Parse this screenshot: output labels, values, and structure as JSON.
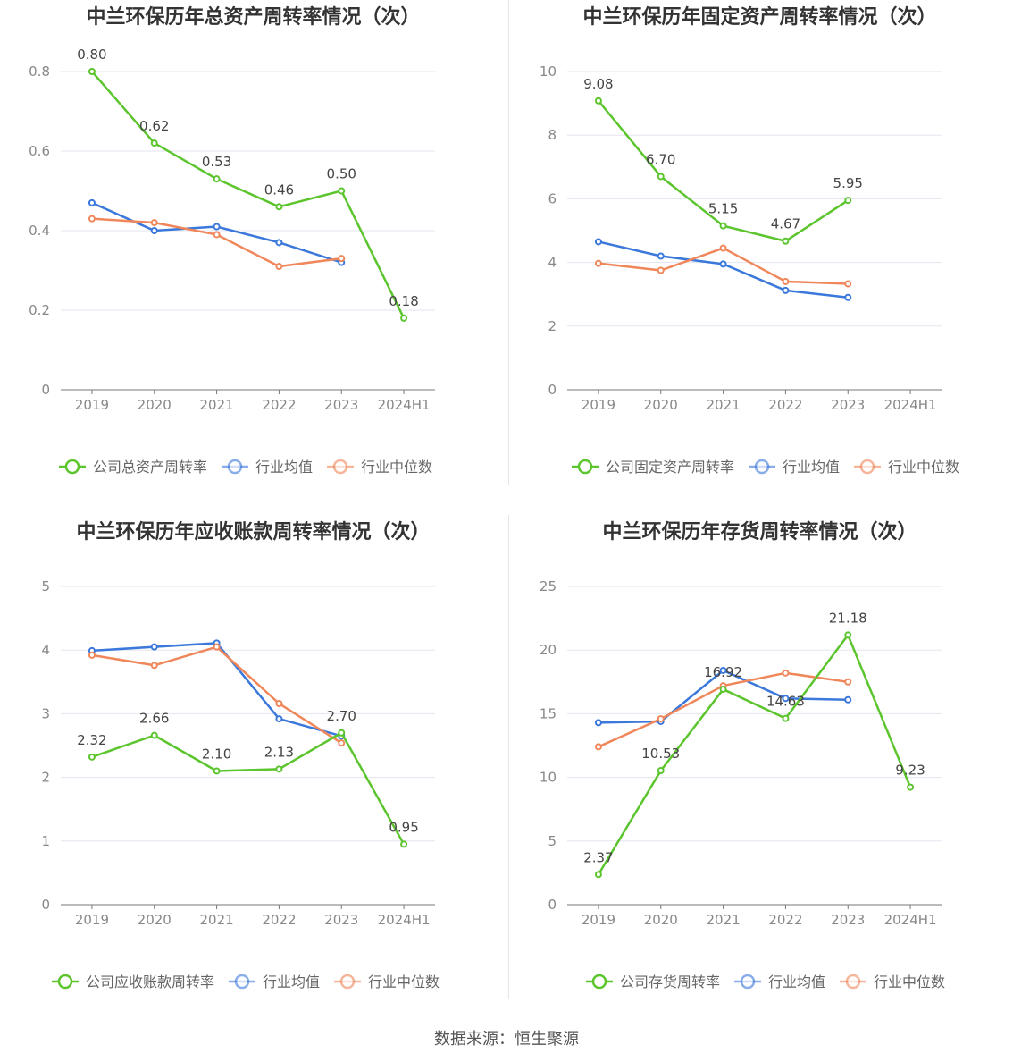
{
  "source_prefix": "数据来源：",
  "source_name": "恒生聚源",
  "colors": {
    "company": "#5cc52e",
    "avg": "#3b78db",
    "median": "#f0875a",
    "grid": "#e3e6ef",
    "axis": "#777777"
  },
  "chart_data": [
    {
      "type": "line",
      "title": "中兰环保历年总资产周转率情况（次）",
      "categories": [
        "2019",
        "2020",
        "2021",
        "2022",
        "2023",
        "2024H1"
      ],
      "ylim": [
        0,
        0.8
      ],
      "yticks": [
        "0",
        "0.2",
        "0.4",
        "0.6",
        "0.8"
      ],
      "series": [
        {
          "name": "公司总资产周转率",
          "key": "company",
          "values": [
            0.8,
            0.62,
            0.53,
            0.46,
            0.5,
            0.18
          ],
          "labels": [
            "0.80",
            "0.62",
            "0.53",
            "0.46",
            "0.50",
            "0.18"
          ]
        },
        {
          "name": "行业均值",
          "key": "avg",
          "values": [
            0.47,
            0.4,
            0.41,
            0.37,
            0.32,
            null
          ]
        },
        {
          "name": "行业中位数",
          "key": "median",
          "values": [
            0.43,
            0.42,
            0.39,
            0.31,
            0.33,
            null
          ]
        }
      ]
    },
    {
      "type": "line",
      "title": "中兰环保历年固定资产周转率情况（次）",
      "categories": [
        "2019",
        "2020",
        "2021",
        "2022",
        "2023",
        "2024H1"
      ],
      "ylim": [
        0,
        10
      ],
      "yticks": [
        "0",
        "2",
        "4",
        "6",
        "8",
        "10"
      ],
      "series": [
        {
          "name": "公司固定资产周转率",
          "key": "company",
          "values": [
            9.08,
            6.7,
            5.15,
            4.67,
            5.95,
            null
          ],
          "labels": [
            "9.08",
            "6.70",
            "5.15",
            "4.67",
            "5.95",
            null
          ]
        },
        {
          "name": "行业均值",
          "key": "avg",
          "values": [
            4.65,
            4.2,
            3.95,
            3.12,
            2.9,
            null
          ]
        },
        {
          "name": "行业中位数",
          "key": "median",
          "values": [
            3.97,
            3.75,
            4.45,
            3.4,
            3.33,
            null
          ]
        }
      ]
    },
    {
      "type": "line",
      "title": "中兰环保历年应收账款周转率情况（次）",
      "categories": [
        "2019",
        "2020",
        "2021",
        "2022",
        "2023",
        "2024H1"
      ],
      "ylim": [
        0,
        5
      ],
      "yticks": [
        "0",
        "1",
        "2",
        "3",
        "4",
        "5"
      ],
      "series": [
        {
          "name": "公司应收账款周转率",
          "key": "company",
          "values": [
            2.32,
            2.66,
            2.1,
            2.13,
            2.7,
            0.95
          ],
          "labels": [
            "2.32",
            "2.66",
            "2.10",
            "2.13",
            "2.70",
            "0.95"
          ]
        },
        {
          "name": "行业均值",
          "key": "avg",
          "values": [
            3.99,
            4.05,
            4.11,
            2.92,
            2.65,
            null
          ]
        },
        {
          "name": "行业中位数",
          "key": "median",
          "values": [
            3.92,
            3.76,
            4.05,
            3.16,
            2.54,
            null
          ]
        }
      ]
    },
    {
      "type": "line",
      "title": "中兰环保历年存货周转率情况（次）",
      "categories": [
        "2019",
        "2020",
        "2021",
        "2022",
        "2023",
        "2024H1"
      ],
      "ylim": [
        0,
        25
      ],
      "yticks": [
        "0",
        "5",
        "10",
        "15",
        "20",
        "25"
      ],
      "series": [
        {
          "name": "公司存货周转率",
          "key": "company",
          "values": [
            2.37,
            10.53,
            16.92,
            14.63,
            21.18,
            9.23
          ],
          "labels": [
            "2.37",
            "10.53",
            "16.92",
            "14.63",
            "21.18",
            "9.23"
          ]
        },
        {
          "name": "行业均值",
          "key": "avg",
          "values": [
            14.3,
            14.4,
            18.4,
            16.2,
            16.1,
            null
          ]
        },
        {
          "name": "行业中位数",
          "key": "median",
          "values": [
            12.4,
            14.6,
            17.2,
            18.2,
            17.5,
            null
          ]
        }
      ]
    }
  ]
}
